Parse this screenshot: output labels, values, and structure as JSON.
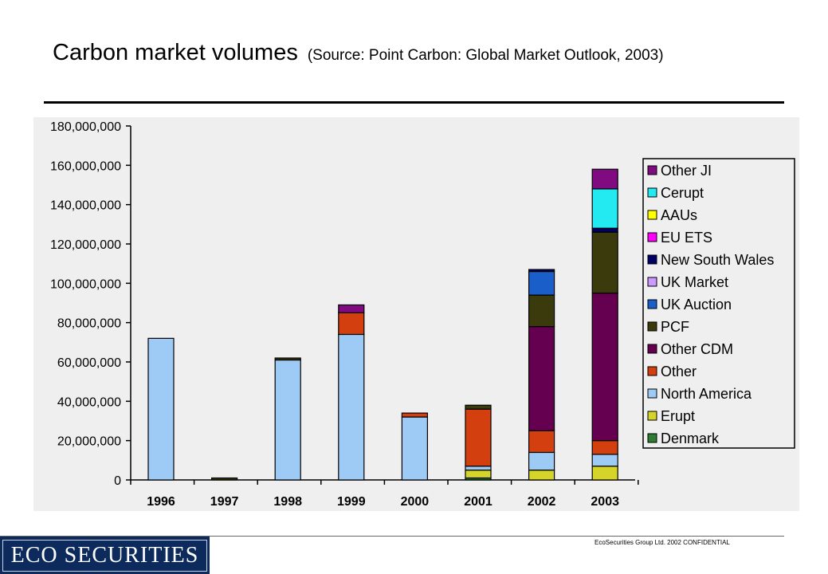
{
  "header": {
    "title": "Carbon market volumes",
    "source": "(Source: Point Carbon: Global Market Outlook, 2003)"
  },
  "footer": {
    "logo_text": "ECO SECURITIES",
    "confidential": "EcoSecurities Group Ltd. 2002 CONFIDENTIAL"
  },
  "chart_data": {
    "type": "bar",
    "stacked": true,
    "title": "",
    "xlabel": "",
    "ylabel": "",
    "ylim": [
      0,
      180000000
    ],
    "y_ticks": [
      "0",
      "20,000,000",
      "40,000,000",
      "60,000,000",
      "80,000,000",
      "100,000,000",
      "120,000,000",
      "140,000,000",
      "160,000,000",
      "180,000,000"
    ],
    "categories": [
      "1996",
      "1997",
      "1998",
      "1999",
      "2000",
      "2001",
      "2002",
      "2003"
    ],
    "legend_position": "right",
    "grid": false,
    "series": [
      {
        "name": "Denmark",
        "color": "#2e7d32",
        "values": [
          0,
          0,
          0,
          0,
          0,
          1000000,
          0,
          0
        ]
      },
      {
        "name": "Erupt",
        "color": "#d4d42a",
        "values": [
          0,
          0,
          0,
          0,
          0,
          4000000,
          5000000,
          7000000
        ]
      },
      {
        "name": "North America",
        "color": "#9ecbf5",
        "values": [
          72000000,
          0,
          61000000,
          74000000,
          32000000,
          2000000,
          9000000,
          6000000
        ]
      },
      {
        "name": "Other",
        "color": "#d33f0f",
        "values": [
          0,
          0,
          0,
          11000000,
          2000000,
          29000000,
          11000000,
          7000000
        ]
      },
      {
        "name": "Other CDM",
        "color": "#64004f",
        "values": [
          0,
          0,
          0,
          0,
          0,
          0,
          53000000,
          75000000
        ]
      },
      {
        "name": "PCF",
        "color": "#3b3a0c",
        "values": [
          0,
          1000000,
          1000000,
          0,
          0,
          2000000,
          16000000,
          31000000
        ]
      },
      {
        "name": "UK Auction",
        "color": "#1a5fc9",
        "values": [
          0,
          0,
          0,
          0,
          0,
          0,
          12000000,
          0
        ]
      },
      {
        "name": "UK Market",
        "color": "#cc99ff",
        "values": [
          0,
          0,
          0,
          0,
          0,
          0,
          0,
          0
        ]
      },
      {
        "name": "New South Wales",
        "color": "#000066",
        "values": [
          0,
          0,
          0,
          0,
          0,
          0,
          1000000,
          2000000
        ]
      },
      {
        "name": "EU ETS",
        "color": "#ff00ff",
        "values": [
          0,
          0,
          0,
          0,
          0,
          0,
          0,
          0
        ]
      },
      {
        "name": "AAUs",
        "color": "#ffff00",
        "values": [
          0,
          0,
          0,
          0,
          0,
          0,
          0,
          0
        ]
      },
      {
        "name": "Cerupt",
        "color": "#22eaf0",
        "values": [
          0,
          0,
          0,
          0,
          0,
          0,
          0,
          20000000
        ]
      },
      {
        "name": "Other JI",
        "color": "#800a80",
        "values": [
          0,
          0,
          0,
          4000000,
          0,
          0,
          0,
          10000000
        ]
      }
    ]
  }
}
